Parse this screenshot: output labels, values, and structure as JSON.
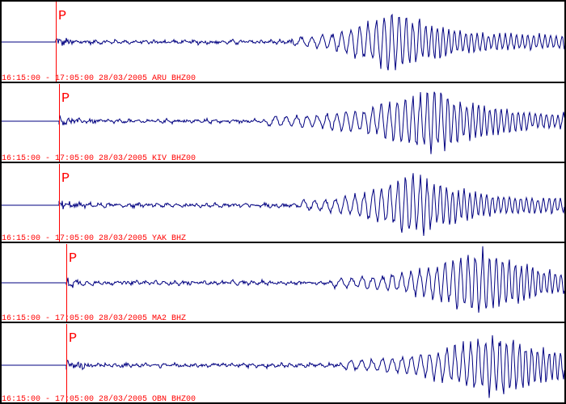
{
  "colors": {
    "trace": "#000080",
    "pick": "#ff0000",
    "label": "#ff0000",
    "border": "#000000",
    "background": "#ffffff"
  },
  "chart_data": {
    "type": "line",
    "description_free": true,
    "time_window": {
      "start": "16:15:00",
      "end": "17:05:00",
      "date": "28/03/2005"
    },
    "traces": [
      {
        "label": "16:15:00 - 17:05:00 28/03/2005 ARU BHZ00",
        "station": "ARU",
        "channel": "BHZ00",
        "pick": "P"
      },
      {
        "label": "16:15:00 - 17:05:00 28/03/2005 KIV BHZ00",
        "station": "KIV",
        "channel": "BHZ00",
        "pick": "P"
      },
      {
        "label": "16:15:00 - 17:05:00 28/03/2005 YAK BHZ",
        "station": "YAK",
        "channel": "BHZ",
        "pick": "P"
      },
      {
        "label": "16:15:00 - 17:05:00 28/03/2005 MA2 BHZ",
        "station": "MA2",
        "channel": "BHZ",
        "pick": "P"
      },
      {
        "label": "16:15:00 - 17:05:00 28/03/2005 OBN BHZ00",
        "station": "OBN",
        "channel": "BHZ00",
        "pick": "P"
      }
    ]
  }
}
